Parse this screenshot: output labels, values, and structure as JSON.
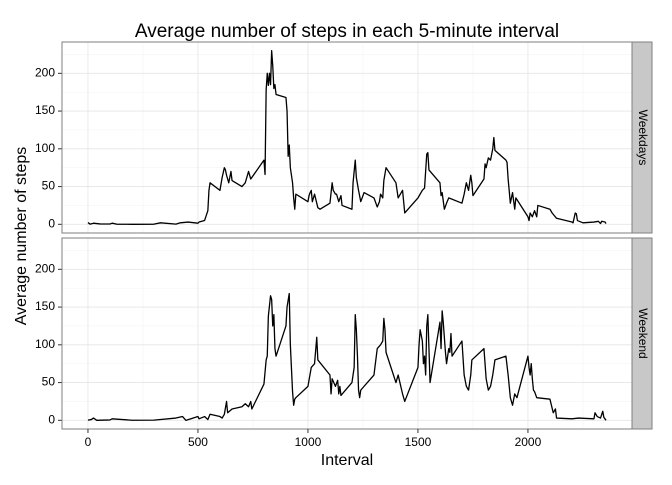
{
  "chart_data": {
    "type": "line",
    "title": "Average number of steps in each 5-minute interval",
    "x_label": "Interval",
    "y_label": "Average number of steps",
    "color": "#000000",
    "grid": true,
    "xlim": [
      -118,
      2473
    ],
    "xticks": [
      0,
      500,
      1000,
      1500,
      2000
    ],
    "x_minor_grid": [
      250,
      750,
      1250,
      1750,
      2250
    ],
    "ylim": [
      -11.5,
      241.5
    ],
    "yticks": [
      0,
      50,
      100,
      150,
      200
    ],
    "y_minor_grid": [
      25,
      75,
      125,
      175,
      225
    ],
    "facets": [
      {
        "strip": "Weekdays",
        "x": [
          0,
          10,
          25,
          55,
          100,
          110,
          130,
          200,
          300,
          330,
          400,
          420,
          455,
          500,
          505,
          530,
          545,
          550,
          555,
          600,
          610,
          620,
          625,
          630,
          640,
          650,
          655,
          700,
          715,
          730,
          740,
          800,
          805,
          810,
          815,
          820,
          825,
          830,
          835,
          840,
          845,
          850,
          855,
          900,
          905,
          910,
          915,
          920,
          930,
          935,
          940,
          945,
          1000,
          1005,
          1010,
          1015,
          1020,
          1030,
          1040,
          1045,
          1055,
          1100,
          1110,
          1115,
          1125,
          1130,
          1140,
          1150,
          1155,
          1200,
          1205,
          1215,
          1220,
          1230,
          1240,
          1255,
          1300,
          1315,
          1325,
          1330,
          1340,
          1345,
          1355,
          1400,
          1410,
          1430,
          1440,
          1500,
          1510,
          1520,
          1530,
          1540,
          1545,
          1550,
          1600,
          1605,
          1610,
          1620,
          1630,
          1640,
          1700,
          1710,
          1720,
          1730,
          1740,
          1745,
          1750,
          1800,
          1805,
          1810,
          1820,
          1830,
          1840,
          1845,
          1850,
          1900,
          1905,
          1910,
          1920,
          1930,
          1940,
          1945,
          2000,
          2005,
          2010,
          2020,
          2030,
          2040,
          2045,
          2100,
          2110,
          2130,
          2200,
          2205,
          2215,
          2220,
          2225,
          2250,
          2300,
          2320,
          2330,
          2335,
          2350,
          2355
        ],
        "values": [
          2.3,
          0.2,
          1.5,
          0.5,
          0.4,
          1.5,
          0.2,
          0,
          0.2,
          2,
          0.3,
          2,
          3,
          1.5,
          3,
          5,
          18,
          45,
          55,
          45,
          62,
          75,
          72,
          65,
          55,
          70,
          58,
          50,
          55,
          70,
          60,
          85,
          66,
          178,
          200,
          184,
          200,
          185,
          230,
          210,
          180,
          185,
          172,
          168,
          150,
          90,
          105,
          75,
          55,
          35,
          20,
          40,
          30,
          38,
          42,
          45,
          30,
          40,
          28,
          22,
          20,
          28,
          55,
          45,
          40,
          40,
          30,
          38,
          25,
          20,
          55,
          85,
          62,
          45,
          30,
          42,
          35,
          23,
          30,
          40,
          35,
          58,
          75,
          55,
          35,
          45,
          15,
          35,
          40,
          45,
          48,
          93,
          95,
          72,
          55,
          38,
          42,
          20,
          28,
          35,
          28,
          40,
          55,
          45,
          65,
          55,
          38,
          60,
          80,
          75,
          88,
          85,
          100,
          115,
          98,
          85,
          82,
          60,
          28,
          42,
          20,
          35,
          10,
          5,
          15,
          10,
          18,
          10,
          25,
          20,
          15,
          8,
          3,
          2,
          15,
          14,
          5,
          2,
          3,
          4,
          1,
          4,
          3,
          1
        ]
      },
      {
        "strip": "Weekend",
        "x": [
          0,
          15,
          25,
          40,
          100,
          110,
          200,
          300,
          400,
          430,
          445,
          500,
          505,
          530,
          545,
          555,
          600,
          610,
          620,
          630,
          635,
          655,
          700,
          715,
          730,
          740,
          745,
          800,
          810,
          815,
          820,
          830,
          835,
          840,
          845,
          850,
          855,
          900,
          905,
          915,
          920,
          930,
          935,
          940,
          945,
          1000,
          1015,
          1030,
          1040,
          1045,
          1100,
          1105,
          1110,
          1125,
          1135,
          1140,
          1145,
          1150,
          1200,
          1205,
          1210,
          1215,
          1220,
          1225,
          1230,
          1235,
          1240,
          1300,
          1315,
          1330,
          1340,
          1345,
          1350,
          1355,
          1400,
          1410,
          1430,
          1440,
          1500,
          1505,
          1510,
          1520,
          1525,
          1530,
          1535,
          1540,
          1545,
          1550,
          1555,
          1600,
          1605,
          1610,
          1615,
          1620,
          1625,
          1630,
          1640,
          1645,
          1650,
          1655,
          1700,
          1710,
          1720,
          1730,
          1740,
          1745,
          1800,
          1805,
          1810,
          1820,
          1830,
          1840,
          1850,
          1900,
          1910,
          1920,
          1930,
          1940,
          1950,
          2000,
          2005,
          2010,
          2015,
          2020,
          2025,
          2030,
          2040,
          2100,
          2115,
          2125,
          2130,
          2200,
          2230,
          2300,
          2305,
          2315,
          2330,
          2340,
          2345,
          2350,
          2355
        ],
        "values": [
          0.2,
          1,
          3,
          0,
          0.5,
          2,
          0.1,
          0.3,
          3,
          5,
          0,
          5,
          2,
          5,
          1,
          8,
          5,
          3,
          8,
          25,
          10,
          15,
          18,
          22,
          18,
          25,
          15,
          48,
          80,
          85,
          138,
          165,
          160,
          125,
          140,
          95,
          85,
          125,
          150,
          168,
          100,
          38,
          20,
          28,
          30,
          45,
          70,
          75,
          110,
          80,
          60,
          35,
          55,
          45,
          53,
          35,
          45,
          33,
          50,
          60,
          70,
          140,
          120,
          85,
          40,
          30,
          40,
          60,
          95,
          100,
          105,
          135,
          120,
          90,
          50,
          60,
          35,
          25,
          70,
          100,
          120,
          105,
          75,
          85,
          60,
          125,
          140,
          95,
          50,
          130,
          95,
          145,
          130,
          110,
          90,
          75,
          95,
          90,
          115,
          85,
          105,
          60,
          45,
          40,
          60,
          80,
          95,
          75,
          55,
          40,
          45,
          60,
          80,
          85,
          60,
          30,
          20,
          35,
          30,
          85,
          70,
          60,
          75,
          55,
          40,
          38,
          30,
          28,
          10,
          15,
          3,
          2,
          3,
          2,
          10,
          5,
          3,
          12,
          4,
          2,
          0
        ]
      }
    ]
  }
}
